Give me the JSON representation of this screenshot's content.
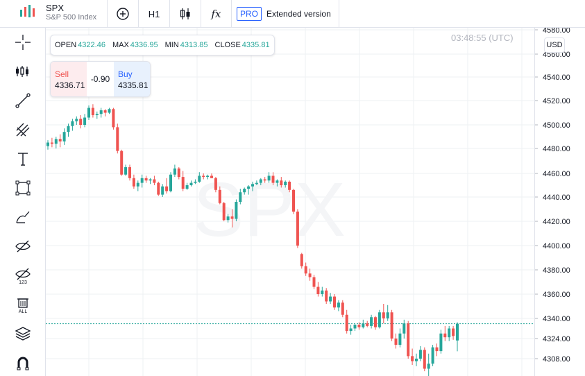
{
  "symbol": {
    "ticker": "SPX",
    "description": "S&P 500 Index"
  },
  "toolbar_top": {
    "interval": "H1",
    "indicators_label": "fx",
    "pro_badge": "PRO",
    "pro_label": "Extended version"
  },
  "tools": [
    "crosshair-icon",
    "indicators-list-icon",
    "trend-line-icon",
    "pitchfork-icon",
    "text-tool-icon",
    "rectangle-icon",
    "brush-icon",
    "hide-drawings-icon",
    "hide-indicators-icon",
    "remove-all-icon",
    "layers-icon",
    "magnet-icon"
  ],
  "ohlc": {
    "open_label": "OPEN",
    "open": "4322.46",
    "max_label": "MAX",
    "max": "4336.95",
    "min_label": "MIN",
    "min": "4313.85",
    "close_label": "CLOSE",
    "close": "4335.81"
  },
  "trade": {
    "sell_label": "Sell",
    "sell_price": "4336.71",
    "spread": "-0.90",
    "buy_label": "Buy",
    "buy_price": "4335.81"
  },
  "time": "03:48:55 (UTC)",
  "currency": "USD",
  "watermark": "SPX",
  "colors": {
    "up": "#26a69a",
    "down": "#ef5350",
    "grid": "#eef0f3",
    "watermark": "#f4f5f7"
  },
  "chart_data": {
    "type": "candlestick",
    "y_ticks": [
      4580,
      4560,
      4540,
      4520,
      4500,
      4480,
      4460,
      4440,
      4420,
      4400,
      4380,
      4360,
      4340,
      4324,
      4308
    ],
    "y_tick_labels": [
      "4580.00",
      "4560.00",
      "4540.00",
      "4520.00",
      "4500.00",
      "4480.00",
      "4460.00",
      "4440.00",
      "4420.00",
      "4400.00",
      "4380.00",
      "4360.00",
      "4340.00",
      "4324.00",
      "4308.00"
    ],
    "last_price": 4335.81,
    "ylim": [
      4294,
      4581
    ],
    "candles": [
      {
        "o": 4482,
        "h": 4487,
        "l": 4479,
        "c": 4485
      },
      {
        "o": 4485,
        "h": 4489,
        "l": 4481,
        "c": 4484
      },
      {
        "o": 4484,
        "h": 4490,
        "l": 4480,
        "c": 4488
      },
      {
        "o": 4488,
        "h": 4492,
        "l": 4481,
        "c": 4486
      },
      {
        "o": 4486,
        "h": 4497,
        "l": 4483,
        "c": 4494
      },
      {
        "o": 4494,
        "h": 4501,
        "l": 4490,
        "c": 4499
      },
      {
        "o": 4499,
        "h": 4505,
        "l": 4495,
        "c": 4503
      },
      {
        "o": 4503,
        "h": 4507,
        "l": 4500,
        "c": 4505
      },
      {
        "o": 4505,
        "h": 4508,
        "l": 4497,
        "c": 4500
      },
      {
        "o": 4500,
        "h": 4509,
        "l": 4498,
        "c": 4506
      },
      {
        "o": 4506,
        "h": 4516,
        "l": 4504,
        "c": 4514
      },
      {
        "o": 4514,
        "h": 4517,
        "l": 4506,
        "c": 4508
      },
      {
        "o": 4508,
        "h": 4511,
        "l": 4505,
        "c": 4509
      },
      {
        "o": 4509,
        "h": 4514,
        "l": 4506,
        "c": 4512
      },
      {
        "o": 4512,
        "h": 4513,
        "l": 4507,
        "c": 4510
      },
      {
        "o": 4510,
        "h": 4514,
        "l": 4509,
        "c": 4513
      },
      {
        "o": 4513,
        "h": 4514,
        "l": 4496,
        "c": 4498
      },
      {
        "o": 4498,
        "h": 4501,
        "l": 4476,
        "c": 4478
      },
      {
        "o": 4478,
        "h": 4479,
        "l": 4458,
        "c": 4459
      },
      {
        "o": 4459,
        "h": 4467,
        "l": 4458,
        "c": 4465
      },
      {
        "o": 4465,
        "h": 4467,
        "l": 4454,
        "c": 4456
      },
      {
        "o": 4456,
        "h": 4459,
        "l": 4447,
        "c": 4449
      },
      {
        "o": 4449,
        "h": 4454,
        "l": 4445,
        "c": 4452
      },
      {
        "o": 4452,
        "h": 4459,
        "l": 4448,
        "c": 4456
      },
      {
        "o": 4456,
        "h": 4458,
        "l": 4452,
        "c": 4454
      },
      {
        "o": 4454,
        "h": 4456,
        "l": 4451,
        "c": 4455
      },
      {
        "o": 4455,
        "h": 4458,
        "l": 4450,
        "c": 4452
      },
      {
        "o": 4452,
        "h": 4453,
        "l": 4441,
        "c": 4442
      },
      {
        "o": 4442,
        "h": 4451,
        "l": 4440,
        "c": 4449
      },
      {
        "o": 4449,
        "h": 4456,
        "l": 4443,
        "c": 4445
      },
      {
        "o": 4445,
        "h": 4461,
        "l": 4444,
        "c": 4459
      },
      {
        "o": 4459,
        "h": 4467,
        "l": 4457,
        "c": 4464
      },
      {
        "o": 4464,
        "h": 4465,
        "l": 4455,
        "c": 4457
      },
      {
        "o": 4457,
        "h": 4462,
        "l": 4445,
        "c": 4447
      },
      {
        "o": 4447,
        "h": 4452,
        "l": 4446,
        "c": 4450
      },
      {
        "o": 4450,
        "h": 4454,
        "l": 4449,
        "c": 4452
      },
      {
        "o": 4452,
        "h": 4455,
        "l": 4451,
        "c": 4453
      },
      {
        "o": 4453,
        "h": 4461,
        "l": 4452,
        "c": 4458
      },
      {
        "o": 4458,
        "h": 4460,
        "l": 4455,
        "c": 4457
      },
      {
        "o": 4457,
        "h": 4459,
        "l": 4455,
        "c": 4458
      },
      {
        "o": 4458,
        "h": 4460,
        "l": 4456,
        "c": 4456
      },
      {
        "o": 4456,
        "h": 4457,
        "l": 4444,
        "c": 4446
      },
      {
        "o": 4446,
        "h": 4449,
        "l": 4434,
        "c": 4435
      },
      {
        "o": 4435,
        "h": 4436,
        "l": 4420,
        "c": 4421
      },
      {
        "o": 4421,
        "h": 4426,
        "l": 4419,
        "c": 4424
      },
      {
        "o": 4424,
        "h": 4430,
        "l": 4415,
        "c": 4422
      },
      {
        "o": 4422,
        "h": 4438,
        "l": 4420,
        "c": 4436
      },
      {
        "o": 4436,
        "h": 4447,
        "l": 4434,
        "c": 4444
      },
      {
        "o": 4444,
        "h": 4448,
        "l": 4442,
        "c": 4447
      },
      {
        "o": 4447,
        "h": 4450,
        "l": 4442,
        "c": 4449
      },
      {
        "o": 4449,
        "h": 4453,
        "l": 4445,
        "c": 4451
      },
      {
        "o": 4451,
        "h": 4454,
        "l": 4450,
        "c": 4452
      },
      {
        "o": 4452,
        "h": 4456,
        "l": 4450,
        "c": 4455
      },
      {
        "o": 4455,
        "h": 4457,
        "l": 4452,
        "c": 4454
      },
      {
        "o": 4454,
        "h": 4461,
        "l": 4452,
        "c": 4458
      },
      {
        "o": 4458,
        "h": 4461,
        "l": 4450,
        "c": 4452
      },
      {
        "o": 4452,
        "h": 4455,
        "l": 4449,
        "c": 4454
      },
      {
        "o": 4454,
        "h": 4457,
        "l": 4448,
        "c": 4450
      },
      {
        "o": 4450,
        "h": 4454,
        "l": 4448,
        "c": 4453
      },
      {
        "o": 4453,
        "h": 4454,
        "l": 4444,
        "c": 4446
      },
      {
        "o": 4446,
        "h": 4447,
        "l": 4426,
        "c": 4428
      },
      {
        "o": 4428,
        "h": 4430,
        "l": 4398,
        "c": 4400
      },
      {
        "o": 4393,
        "h": 4394,
        "l": 4381,
        "c": 4383
      },
      {
        "o": 4383,
        "h": 4386,
        "l": 4375,
        "c": 4377
      },
      {
        "o": 4377,
        "h": 4381,
        "l": 4371,
        "c": 4374
      },
      {
        "o": 4374,
        "h": 4376,
        "l": 4364,
        "c": 4366
      },
      {
        "o": 4366,
        "h": 4370,
        "l": 4358,
        "c": 4360
      },
      {
        "o": 4360,
        "h": 4366,
        "l": 4358,
        "c": 4363
      },
      {
        "o": 4363,
        "h": 4365,
        "l": 4352,
        "c": 4354
      },
      {
        "o": 4354,
        "h": 4361,
        "l": 4352,
        "c": 4358
      },
      {
        "o": 4358,
        "h": 4360,
        "l": 4347,
        "c": 4349
      },
      {
        "o": 4349,
        "h": 4355,
        "l": 4346,
        "c": 4353
      },
      {
        "o": 4353,
        "h": 4355,
        "l": 4341,
        "c": 4343
      },
      {
        "o": 4343,
        "h": 4347,
        "l": 4328,
        "c": 4330
      },
      {
        "o": 4330,
        "h": 4335,
        "l": 4327,
        "c": 4332
      },
      {
        "o": 4332,
        "h": 4336,
        "l": 4330,
        "c": 4335
      },
      {
        "o": 4335,
        "h": 4337,
        "l": 4331,
        "c": 4333
      },
      {
        "o": 4333,
        "h": 4339,
        "l": 4332,
        "c": 4336
      },
      {
        "o": 4336,
        "h": 4338,
        "l": 4333,
        "c": 4334
      },
      {
        "o": 4334,
        "h": 4343,
        "l": 4332,
        "c": 4341
      },
      {
        "o": 4341,
        "h": 4342,
        "l": 4331,
        "c": 4333
      },
      {
        "o": 4333,
        "h": 4347,
        "l": 4332,
        "c": 4345
      },
      {
        "o": 4345,
        "h": 4352,
        "l": 4336,
        "c": 4340
      },
      {
        "o": 4340,
        "h": 4351,
        "l": 4338,
        "c": 4345
      },
      {
        "o": 4345,
        "h": 4347,
        "l": 4322,
        "c": 4324
      },
      {
        "o": 4324,
        "h": 4328,
        "l": 4316,
        "c": 4319
      },
      {
        "o": 4319,
        "h": 4332,
        "l": 4317,
        "c": 4328
      },
      {
        "o": 4328,
        "h": 4339,
        "l": 4324,
        "c": 4336
      },
      {
        "o": 4336,
        "h": 4338,
        "l": 4308,
        "c": 4310
      },
      {
        "o": 4310,
        "h": 4316,
        "l": 4303,
        "c": 4306
      },
      {
        "o": 4306,
        "h": 4312,
        "l": 4302,
        "c": 4308
      },
      {
        "o": 4308,
        "h": 4318,
        "l": 4306,
        "c": 4315
      },
      {
        "o": 4315,
        "h": 4317,
        "l": 4298,
        "c": 4300
      },
      {
        "o": 4300,
        "h": 4312,
        "l": 4294,
        "c": 4304
      },
      {
        "o": 4304,
        "h": 4319,
        "l": 4302,
        "c": 4317
      },
      {
        "o": 4317,
        "h": 4320,
        "l": 4310,
        "c": 4314
      },
      {
        "o": 4314,
        "h": 4331,
        "l": 4312,
        "c": 4328
      },
      {
        "o": 4328,
        "h": 4334,
        "l": 4322,
        "c": 4325
      },
      {
        "o": 4325,
        "h": 4334,
        "l": 4322,
        "c": 4332
      },
      {
        "o": 4332,
        "h": 4334,
        "l": 4323,
        "c": 4326
      },
      {
        "o": 4322.46,
        "h": 4336.95,
        "l": 4313.85,
        "c": 4335.81
      }
    ]
  }
}
